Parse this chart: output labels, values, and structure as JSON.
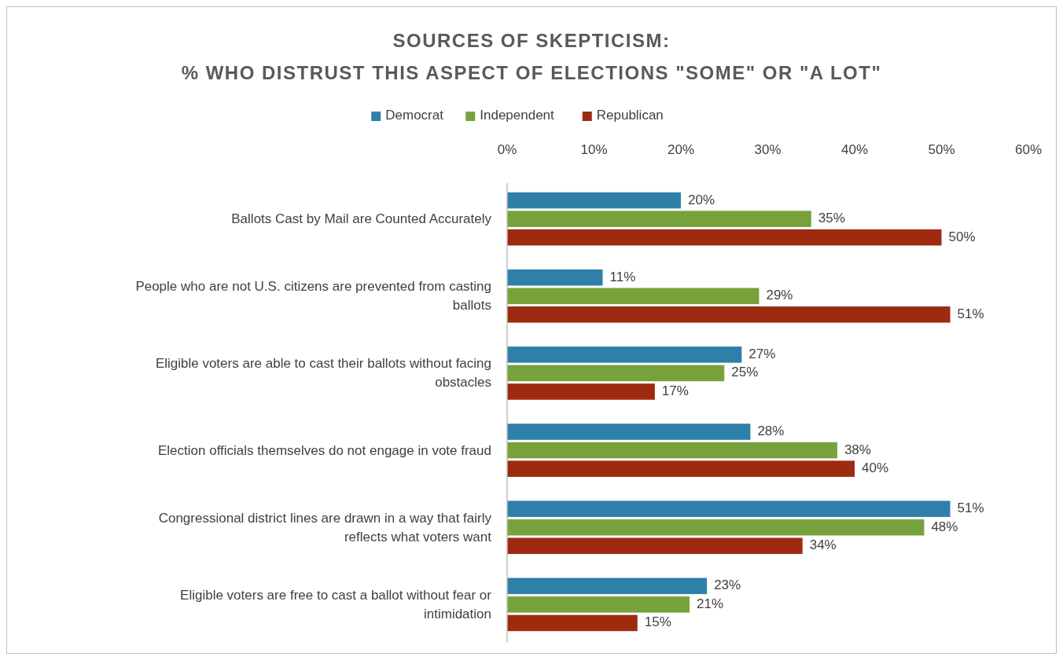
{
  "chart_data": {
    "type": "bar",
    "orientation": "horizontal",
    "title": "SOURCES OF SKEPTICISM:",
    "subtitle": "% WHO DISTRUST THIS ASPECT OF ELECTIONS \"SOME\" OR \"A LOT\"",
    "categories": [
      "Ballots Cast by Mail are Counted Accurately",
      "People who are not U.S. citizens are prevented from casting ballots",
      "Eligible voters are able to cast their ballots without facing obstacles",
      "Election officials themselves do not engage in vote fraud",
      "Congressional district lines are drawn in a way that fairly reflects what voters want",
      "Eligible voters are free to cast a ballot without fear or intimidation"
    ],
    "series": [
      {
        "name": "Democrat",
        "color": "#2f80a9",
        "values": [
          20,
          11,
          27,
          28,
          51,
          23
        ],
        "value_labels": [
          "20%",
          "11%",
          "27%",
          "28%",
          "51%",
          "23%"
        ]
      },
      {
        "name": "Independent",
        "color": "#77a23b",
        "values": [
          35,
          29,
          25,
          38,
          48,
          21
        ],
        "value_labels": [
          "35%",
          "29%",
          "25%",
          "38%",
          "48%",
          "21%"
        ]
      },
      {
        "name": "Republican",
        "color": "#9e2a0f",
        "values": [
          50,
          51,
          17,
          40,
          34,
          15
        ],
        "value_labels": [
          "50%",
          "51%",
          "17%",
          "40%",
          "34%",
          "15%"
        ]
      }
    ],
    "xlim": [
      0,
      60
    ],
    "xticks": [
      {
        "value": 0,
        "label": "0%"
      },
      {
        "value": 10,
        "label": "10%"
      },
      {
        "value": 20,
        "label": "20%"
      },
      {
        "value": 30,
        "label": "30%"
      },
      {
        "value": 40,
        "label": "40%"
      },
      {
        "value": 50,
        "label": "50%"
      },
      {
        "value": 60,
        "label": "60%"
      }
    ],
    "legend": "top",
    "grid": false
  }
}
